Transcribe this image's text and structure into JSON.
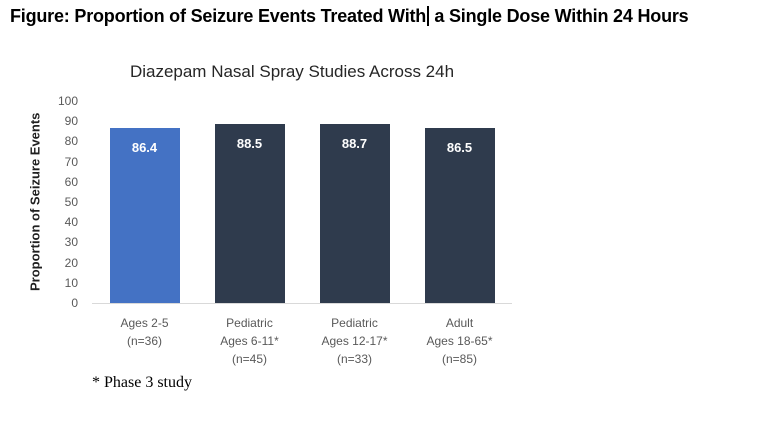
{
  "document": {
    "title_before_caret": "Figure: Proportion of Seizure Events Treated With",
    "title_after_caret": " a Single Dose Within 24 Hours",
    "footnote": "* Phase 3 study"
  },
  "chart_data": {
    "type": "bar",
    "title": "Diazepam Nasal Spray Studies Across 24h",
    "xlabel": "",
    "ylabel": "Proportion of Seizure Events",
    "ylim": [
      0,
      100
    ],
    "ytick_step": 10,
    "grid": false,
    "legend": "none",
    "categories": [
      [
        "Ages 2-5",
        "(n=36)"
      ],
      [
        "Pediatric",
        "Ages 6-11*",
        "(n=45)"
      ],
      [
        "Pediatric",
        "Ages 12-17*",
        "(n=33)"
      ],
      [
        "Adult",
        "Ages 18-65*",
        "(n=85)"
      ]
    ],
    "values": [
      86.4,
      88.5,
      88.7,
      86.5
    ],
    "data_labels": [
      "86.4",
      "88.5",
      "88.7",
      "86.5"
    ],
    "bar_colors": [
      "#4472c4",
      "#2f3b4d",
      "#2f3b4d",
      "#2f3b4d"
    ],
    "colors": {
      "data_label": "#ffffff",
      "axis_line": "#d9d9d9",
      "tick_label": "#595959",
      "category_label": "#595959",
      "chart_title": "#262626"
    }
  }
}
